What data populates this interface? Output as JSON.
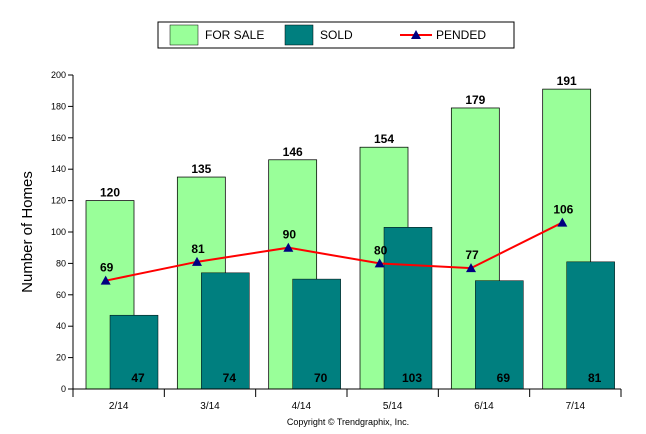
{
  "chart_data": {
    "type": "bar",
    "categories": [
      "2/14",
      "3/14",
      "4/14",
      "5/14",
      "6/14",
      "7/14"
    ],
    "series": [
      {
        "name": "FOR SALE",
        "kind": "bar",
        "values": [
          120,
          135,
          146,
          154,
          179,
          191
        ],
        "color": "#99ff99"
      },
      {
        "name": "SOLD",
        "kind": "bar",
        "values": [
          47,
          74,
          70,
          103,
          69,
          81
        ],
        "color": "#007f7f"
      },
      {
        "name": "PENDED",
        "kind": "line",
        "values": [
          69,
          81,
          90,
          80,
          77,
          106
        ],
        "color": "#ff0000",
        "marker_color": "#000080"
      }
    ],
    "ylabel": "Number of Homes",
    "xlabel": "",
    "ylim": [
      0,
      200
    ],
    "yticks": [
      "0",
      "20",
      "40",
      "60",
      "80",
      "100",
      "120",
      "140",
      "160",
      "180",
      "200"
    ],
    "legend_position": "top",
    "grid": false,
    "footer": "Copyright © Trendgraphix, Inc."
  }
}
